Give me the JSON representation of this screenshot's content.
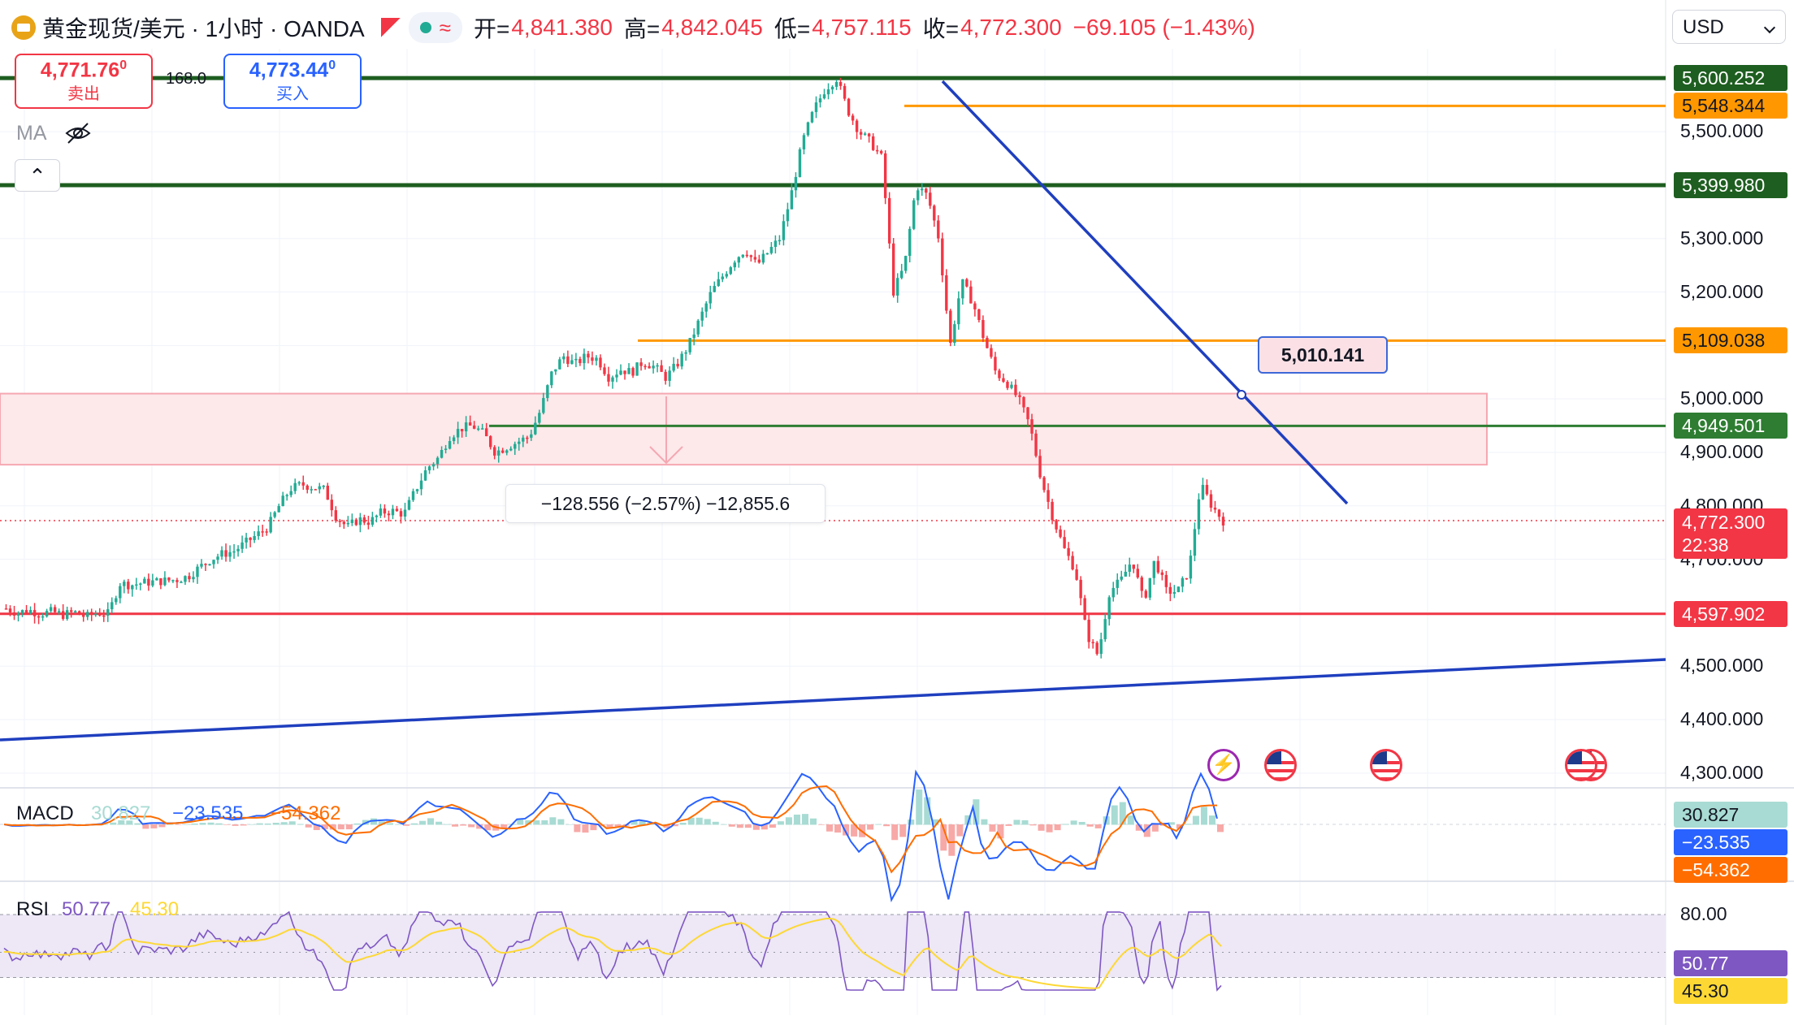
{
  "header": {
    "title": "黄金现货/美元 · 1小时 · OANDA",
    "open_label": "开=",
    "open": "4,841.380",
    "high_label": "高=",
    "high": "4,842.045",
    "low_label": "低=",
    "low": "4,757.115",
    "close_label": "收=",
    "close": "4,772.300",
    "change": "−69.105 (−1.43%)"
  },
  "trade": {
    "sell_price": "4,771.76",
    "sell_sup": "0",
    "sell_label": "卖出",
    "spread": "168.0",
    "buy_price": "4,773.44",
    "buy_sup": "0",
    "buy_label": "买入"
  },
  "ma_label": "MA",
  "currency": "USD",
  "measure_text": "−128.556 (−2.57%) −12,855.6",
  "trendline_callout": "5,010.141",
  "last_price": {
    "value": "4,772.300",
    "countdown": "22:38"
  },
  "price_axis": [
    "5,500.000",
    "5,300.000",
    "5,200.000",
    "5,000.000",
    "4,900.000",
    "4,800.000",
    "4,700.000",
    "4,500.000",
    "4,400.000",
    "4,300.000"
  ],
  "level_tags": [
    {
      "value": "5,600.252",
      "color": "#1e5e20",
      "text_color": "#ffffff"
    },
    {
      "value": "5,548.344",
      "color": "#ff9800",
      "text_color": "#131722"
    },
    {
      "value": "5,399.980",
      "color": "#1e5e20",
      "text_color": "#ffffff"
    },
    {
      "value": "5,109.038",
      "color": "#ff9800",
      "text_color": "#131722"
    },
    {
      "value": "4,949.501",
      "color": "#2e7d32",
      "text_color": "#ffffff"
    },
    {
      "value": "4,597.902",
      "color": "#f23645",
      "text_color": "#ffffff"
    }
  ],
  "macd": {
    "name": "MACD",
    "hist": "30.827",
    "macd": "−23.535",
    "signal": "−54.362"
  },
  "rsi": {
    "name": "RSI",
    "value": "50.77",
    "ma": "45.30",
    "level": "80.00"
  },
  "colors": {
    "up": "#22ab94",
    "down": "#f23645",
    "trend": "#1f3fbf",
    "zone": "#fde8ea"
  },
  "chart_data": {
    "type": "candlestick",
    "title": "黄金现货/美元 · 1小时 · OANDA",
    "ylim": [
      4280,
      5640
    ],
    "yticks": [
      4300,
      4400,
      4500,
      4600,
      4700,
      4800,
      4900,
      5000,
      5100,
      5200,
      5300,
      5400,
      5500,
      5600
    ],
    "price_path": [
      4608,
      4600,
      4605,
      4598,
      4602,
      4596,
      4601,
      4592,
      4600,
      4598,
      4655,
      4652,
      4656,
      4658,
      4660,
      4662,
      4668,
      4685,
      4700,
      4710,
      4715,
      4730,
      4745,
      4760,
      4800,
      4832,
      4840,
      4835,
      4830,
      4780,
      4760,
      4775,
      4770,
      4788,
      4790,
      4785,
      4830,
      4870,
      4890,
      4930,
      4945,
      4950,
      4935,
      4900,
      4910,
      4920,
      4930,
      4980,
      5050,
      5080,
      5065,
      5080,
      5075,
      5040,
      5055,
      5050,
      5070,
      5060,
      5040,
      5065,
      5100,
      5150,
      5200,
      5230,
      5260,
      5280,
      5250,
      5275,
      5300,
      5380,
      5480,
      5540,
      5580,
      5600,
      5540,
      5500,
      5480,
      5450,
      5200,
      5250,
      5400,
      5380,
      5300,
      5100,
      5220,
      5180,
      5110,
      5050,
      5030,
      5000,
      4950,
      4850,
      4780,
      4720,
      4680,
      4560,
      4520,
      4640,
      4660,
      4700,
      4620,
      4700,
      4640,
      4640,
      4680,
      4840,
      4800,
      4772
    ],
    "levels": [
      {
        "value": 5600.252,
        "color": "#1e5e20"
      },
      {
        "value": 5548.344,
        "color": "#ff9800"
      },
      {
        "value": 5399.98,
        "color": "#1e5e20"
      },
      {
        "value": 5109.038,
        "color": "#ff9800"
      },
      {
        "value": 4949.501,
        "color": "#2e7d32"
      },
      {
        "value": 4597.902,
        "color": "#f23645"
      }
    ],
    "zone": [
      4877,
      5010
    ],
    "last_close": 4772.3,
    "macd": {
      "hist": 30.827,
      "macd": -23.535,
      "signal": -54.362
    },
    "rsi": {
      "value": 50.77,
      "ma": 45.3,
      "upper": 80,
      "lower": 30
    }
  }
}
